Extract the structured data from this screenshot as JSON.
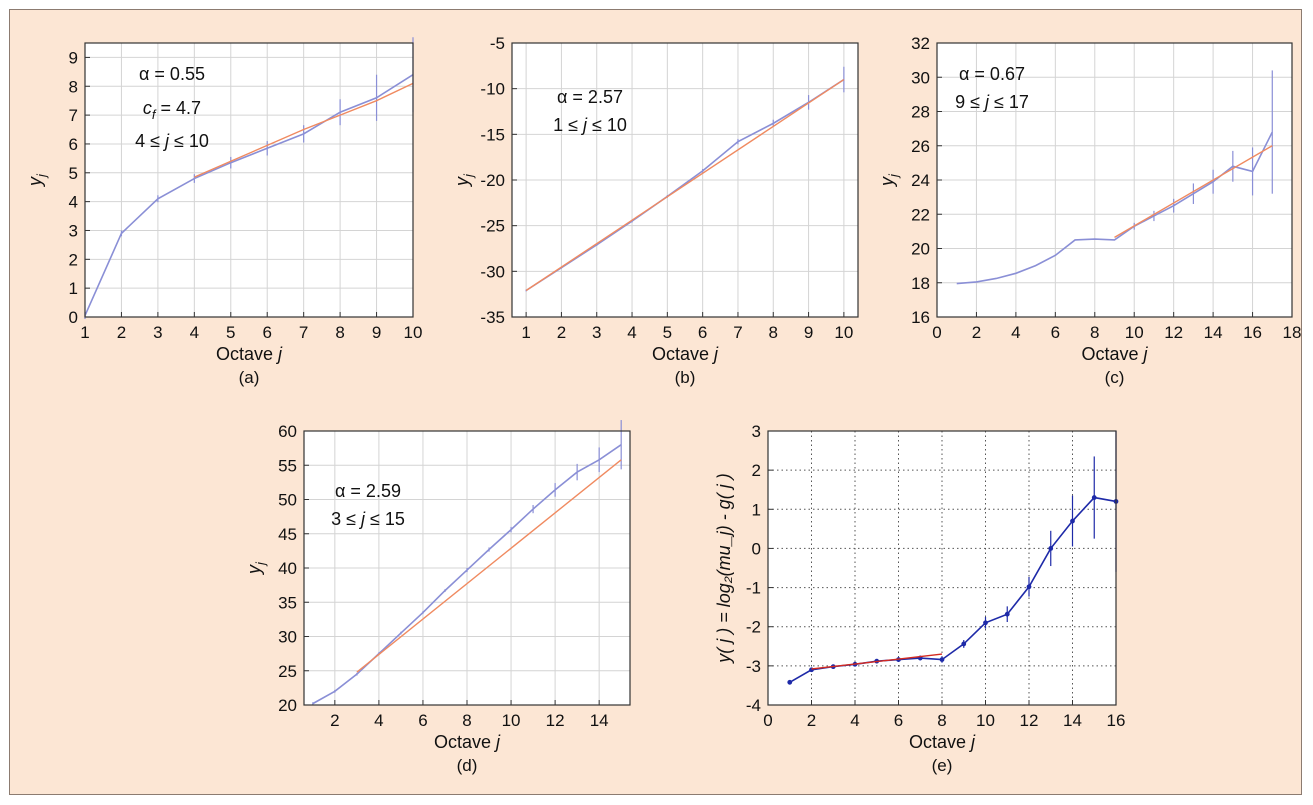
{
  "chart_data": [
    {
      "id": "a",
      "type": "line",
      "caption": "(a)",
      "xlabel": "Octave",
      "xlabel_var": "j",
      "ylabel": "y",
      "ylabel_sub": "j",
      "xlim": [
        1,
        10
      ],
      "ylim": [
        0,
        9.5
      ],
      "xticks": [
        1,
        2,
        3,
        4,
        5,
        6,
        7,
        8,
        9,
        10
      ],
      "yticks": [
        0,
        1,
        2,
        3,
        4,
        5,
        6,
        7,
        8,
        9
      ],
      "grid": true,
      "annotations": [
        "α = 0.55",
        "c_f = 4.7",
        "4 ≤ j ≤ 10"
      ],
      "series": [
        {
          "x": [
            1,
            2,
            3,
            4,
            5,
            6,
            7,
            8,
            9,
            10
          ],
          "y": [
            0.05,
            2.9,
            4.1,
            4.8,
            5.35,
            5.85,
            6.35,
            7.1,
            7.6,
            8.4
          ],
          "color": "#8a8fd6",
          "errors": [
            0.12,
            0.1,
            0.12,
            0.15,
            0.2,
            0.25,
            0.3,
            0.45,
            0.8,
            1.3
          ]
        },
        {
          "x": [
            4,
            5,
            6,
            7,
            8,
            9,
            10
          ],
          "y": [
            4.85,
            5.4,
            5.95,
            6.5,
            7.0,
            7.5,
            8.1
          ],
          "color": "#f08a60"
        }
      ]
    },
    {
      "id": "b",
      "type": "line",
      "caption": "(b)",
      "xlabel": "Octave",
      "xlabel_var": "j",
      "ylabel": "y",
      "ylabel_sub": "j",
      "xlim": [
        0.6,
        10.4
      ],
      "ylim": [
        -35,
        -5
      ],
      "xticks": [
        1,
        2,
        3,
        4,
        5,
        6,
        7,
        8,
        9,
        10
      ],
      "yticks": [
        -35,
        -30,
        -25,
        -20,
        -15,
        -10,
        -5
      ],
      "grid": true,
      "annotations": [
        "α = 2.57",
        "1 ≤ j ≤ 10"
      ],
      "series": [
        {
          "x": [
            1,
            2,
            3,
            4,
            5,
            6,
            7,
            8,
            9,
            10
          ],
          "y": [
            -32.1,
            -29.6,
            -27.1,
            -24.5,
            -21.8,
            -19.0,
            -15.8,
            -13.8,
            -11.5,
            -9.0
          ],
          "color": "#8a8fd6",
          "errors": [
            0.1,
            0.1,
            0.1,
            0.15,
            0.15,
            0.2,
            0.3,
            0.4,
            0.8,
            1.4
          ]
        },
        {
          "x": [
            1,
            10
          ],
          "y": [
            -32.1,
            -9.0
          ],
          "color": "#f08a60"
        }
      ]
    },
    {
      "id": "c",
      "type": "line",
      "caption": "(c)",
      "xlabel": "Octave",
      "xlabel_var": "j",
      "ylabel": "y",
      "ylabel_sub": "j",
      "xlim": [
        0,
        18
      ],
      "ylim": [
        16,
        32
      ],
      "xticks": [
        0,
        2,
        4,
        6,
        8,
        10,
        12,
        14,
        16,
        18
      ],
      "yticks": [
        16,
        18,
        20,
        22,
        24,
        26,
        28,
        30,
        32
      ],
      "grid": true,
      "annotations": [
        "α = 0.67",
        "9 ≤ j ≤ 17"
      ],
      "series": [
        {
          "x": [
            1,
            2,
            3,
            4,
            5,
            6,
            7,
            8,
            9,
            10,
            11,
            12,
            13,
            14,
            15,
            16,
            17
          ],
          "y": [
            17.95,
            18.05,
            18.25,
            18.55,
            19.0,
            19.6,
            20.5,
            20.55,
            20.5,
            21.3,
            21.9,
            22.5,
            23.2,
            23.9,
            24.8,
            24.5,
            26.8
          ],
          "color": "#8a8fd6",
          "errors": [
            0,
            0,
            0,
            0,
            0,
            0,
            0,
            0,
            0,
            0.2,
            0.3,
            0.4,
            0.6,
            0.7,
            0.9,
            1.4,
            3.6
          ]
        },
        {
          "x": [
            9,
            17
          ],
          "y": [
            20.65,
            26.0
          ],
          "color": "#f08a60"
        }
      ]
    },
    {
      "id": "d",
      "type": "line",
      "caption": "(d)",
      "xlabel": "Octave",
      "xlabel_var": "j",
      "ylabel": "y",
      "ylabel_sub": "j",
      "xlim": [
        0.6,
        15.4
      ],
      "ylim": [
        20,
        60
      ],
      "xticks": [
        2,
        4,
        6,
        8,
        10,
        12,
        14
      ],
      "yticks": [
        20,
        25,
        30,
        35,
        40,
        45,
        50,
        55,
        60
      ],
      "grid": true,
      "annotations": [
        "α = 2.59",
        "3 ≤ j ≤ 15"
      ],
      "series": [
        {
          "x": [
            1,
            2,
            3,
            4,
            5,
            6,
            7,
            8,
            9,
            10,
            11,
            12,
            13,
            14,
            15
          ],
          "y": [
            20.2,
            22.0,
            24.5,
            27.5,
            30.5,
            33.5,
            36.7,
            39.7,
            42.7,
            45.6,
            48.6,
            51.4,
            54.0,
            55.8,
            58.0
          ],
          "color": "#8a8fd6",
          "errors": [
            0.2,
            0.2,
            0.2,
            0.2,
            0.2,
            0.2,
            0.2,
            0.3,
            0.3,
            0.4,
            0.6,
            1.0,
            1.2,
            1.8,
            3.6
          ]
        },
        {
          "x": [
            3,
            15
          ],
          "y": [
            24.8,
            55.8
          ],
          "color": "#f08a60"
        }
      ]
    },
    {
      "id": "e",
      "type": "line",
      "caption": "(e)",
      "xlabel": "Octave",
      "xlabel_var": "j",
      "ylabel": "y( j ) = log₂(mu_j) - g( j )",
      "xlim": [
        0,
        16
      ],
      "ylim": [
        -4,
        3
      ],
      "xticks": [
        0,
        2,
        4,
        6,
        8,
        10,
        12,
        14,
        16
      ],
      "yticks": [
        -4,
        -3,
        -2,
        -1,
        0,
        1,
        2,
        3
      ],
      "grid": true,
      "grid_style": "dotted",
      "annotations": [],
      "series": [
        {
          "x": [
            1,
            2,
            3,
            4,
            5,
            6,
            7,
            8,
            9,
            10,
            11,
            12,
            13,
            14,
            15,
            16
          ],
          "y": [
            -3.42,
            -3.1,
            -3.02,
            -2.96,
            -2.88,
            -2.84,
            -2.8,
            -2.84,
            -2.44,
            -1.9,
            -1.68,
            -0.98,
            0.0,
            0.7,
            1.3,
            1.2
          ],
          "color": "#1e2aa8",
          "markers": true,
          "errors": [
            0,
            0.05,
            0.05,
            0.05,
            0.05,
            0.06,
            0.06,
            0.08,
            0.1,
            0.15,
            0.2,
            0.25,
            0.45,
            0.65,
            1.05,
            1.8
          ]
        },
        {
          "x": [
            2,
            8
          ],
          "y": [
            -3.08,
            -2.7
          ],
          "color": "#d42a20"
        }
      ]
    }
  ]
}
